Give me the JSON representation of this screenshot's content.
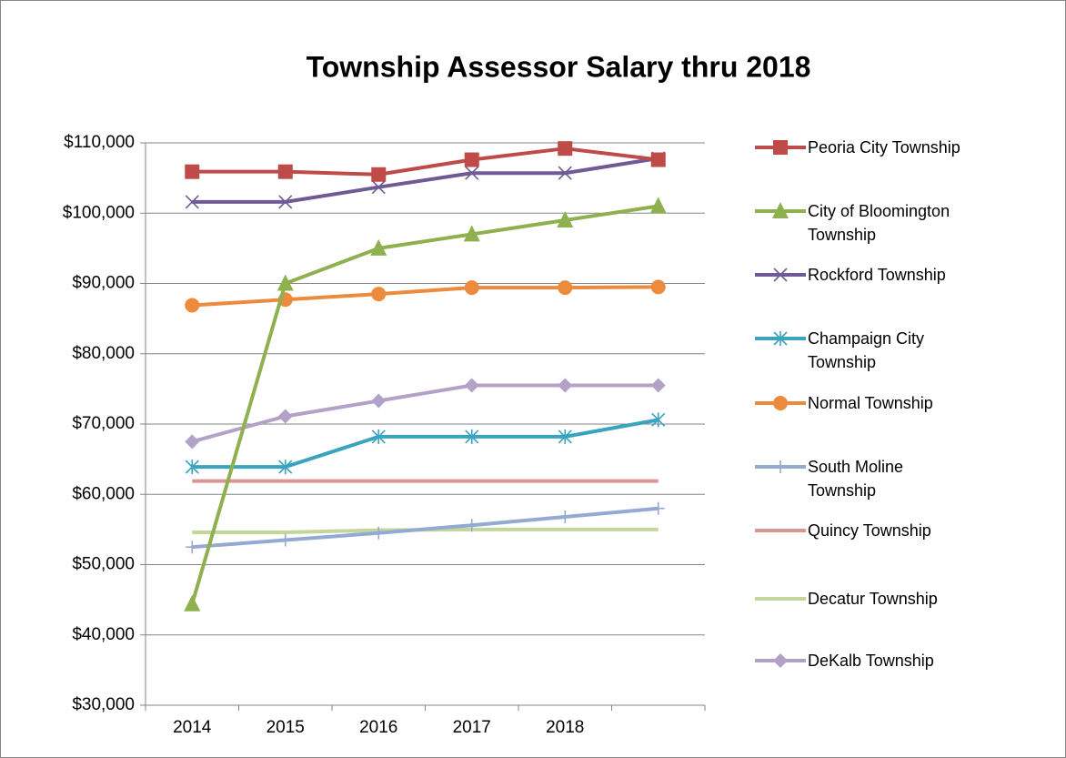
{
  "chart_data": {
    "type": "line",
    "title": "Township Assessor Salary  thru 2018",
    "categories": [
      "2014",
      "2015",
      "2016",
      "2017",
      "2018",
      null
    ],
    "ylim": [
      30000,
      110000
    ],
    "yticks": [
      {
        "value": 30000,
        "label": "$30,000"
      },
      {
        "value": 40000,
        "label": "$40,000"
      },
      {
        "value": 50000,
        "label": "$50,000"
      },
      {
        "value": 60000,
        "label": "$60,000"
      },
      {
        "value": 70000,
        "label": "$70,000"
      },
      {
        "value": 80000,
        "label": "$80,000"
      },
      {
        "value": 90000,
        "label": "$90,000"
      },
      {
        "value": 100000,
        "label": "$100,000"
      },
      {
        "value": 110000,
        "label": "$110,000"
      }
    ],
    "grid": true,
    "legend": "right",
    "series": [
      {
        "name": "Peoria City Township",
        "color": "#be4b48",
        "marker": "square",
        "values": [
          105900,
          105900,
          105500,
          107600,
          109200,
          107600
        ]
      },
      {
        "name": "City of Bloomington Township",
        "color": "#8fb04f",
        "marker": "triangle",
        "values": [
          44400,
          90000,
          95000,
          97000,
          99000,
          101000
        ]
      },
      {
        "name": "Rockford Township",
        "color": "#6f5a96",
        "marker": "x",
        "values": [
          101600,
          101600,
          103700,
          105700,
          105700,
          107800
        ]
      },
      {
        "name": "Champaign City Township",
        "color": "#3aa3bd",
        "marker": "asterisk",
        "values": [
          63900,
          63900,
          68200,
          68200,
          68200,
          70600
        ]
      },
      {
        "name": "Normal Township",
        "color": "#ec8a3e",
        "marker": "circle",
        "values": [
          86900,
          87700,
          88500,
          89400,
          89400,
          89500
        ]
      },
      {
        "name": "South Moline Township",
        "color": "#94aad3",
        "marker": "plus",
        "values": [
          52500,
          53500,
          54500,
          55600,
          56800,
          58000
        ]
      },
      {
        "name": "Quincy Township",
        "color": "#d99694",
        "marker": "none",
        "values": [
          61900,
          61900,
          61900,
          61900,
          61900,
          61900
        ]
      },
      {
        "name": "Decatur Township",
        "color": "#c3d69b",
        "marker": "none",
        "values": [
          54600,
          54600,
          54900,
          55000,
          55000,
          55000
        ]
      },
      {
        "name": "DeKalb Township",
        "color": "#b3a2c7",
        "marker": "diamond",
        "values": [
          67500,
          71100,
          73300,
          75500,
          75500,
          75500
        ]
      }
    ]
  }
}
